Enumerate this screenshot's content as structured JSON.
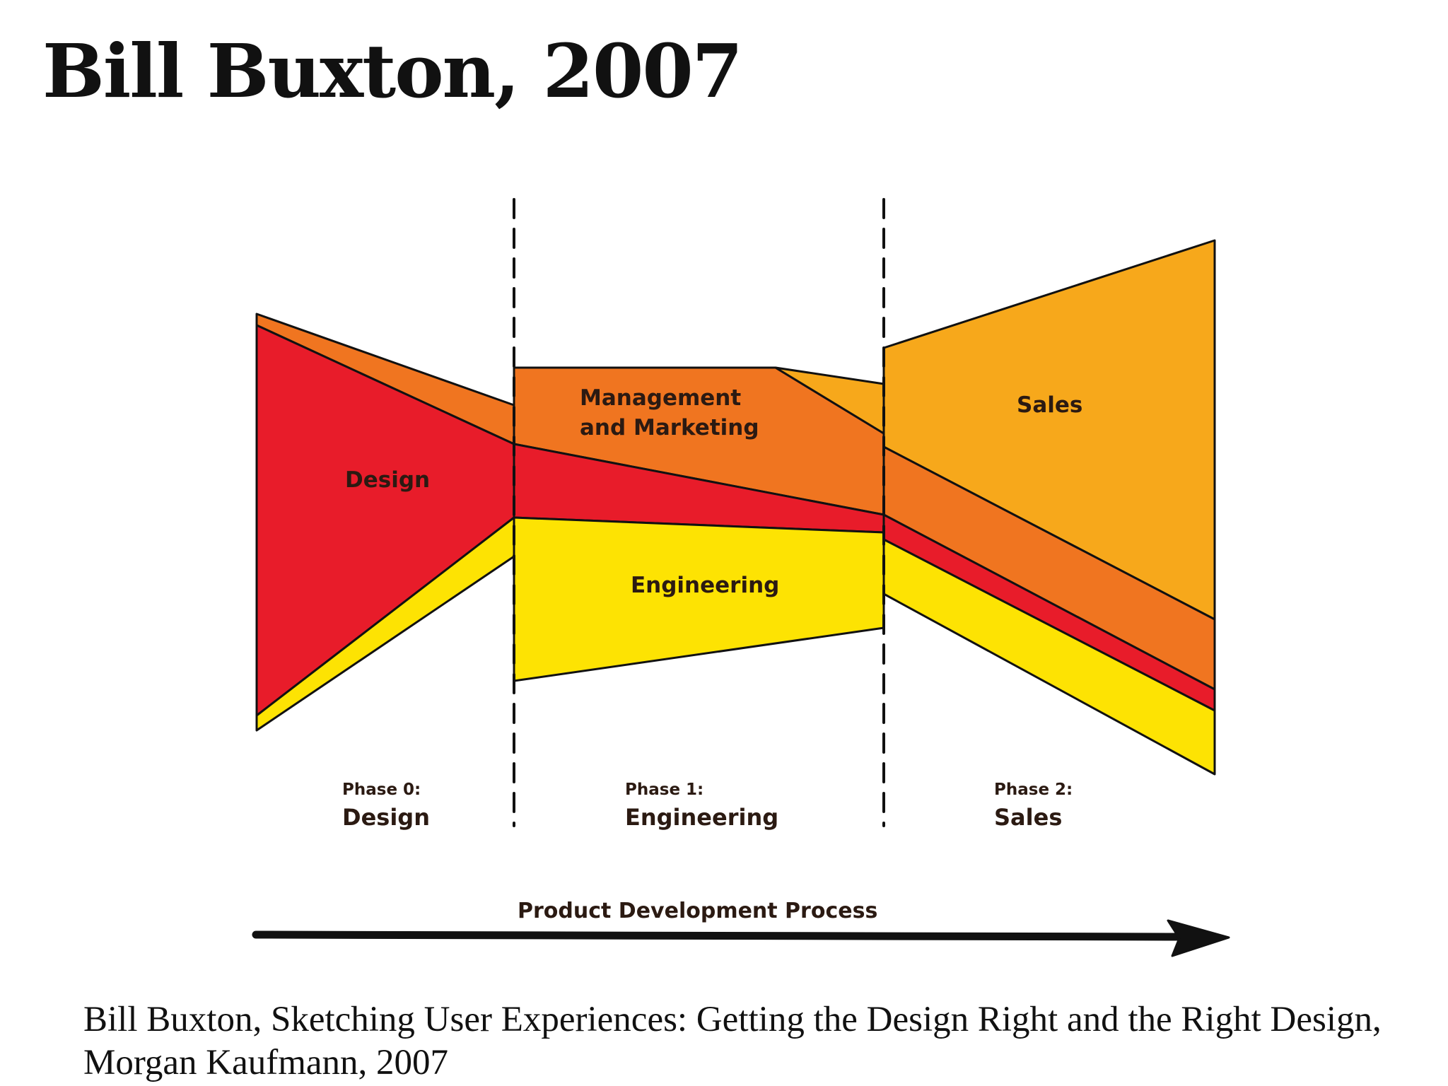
{
  "slide": {
    "title": "Bill Buxton, 2007"
  },
  "diagram": {
    "bands": [
      {
        "id": "design",
        "label": "Design",
        "color": "#e81c2a"
      },
      {
        "id": "management-marketing",
        "label_lines": [
          "Management",
          "and Marketing"
        ],
        "color": "#f07520"
      },
      {
        "id": "engineering",
        "label": "Engineering",
        "color": "#fde303"
      },
      {
        "id": "sales",
        "label": "Sales",
        "color": "#f7a81b"
      }
    ],
    "phases": [
      {
        "number": "Phase 0:",
        "name": "Design"
      },
      {
        "number": "Phase 1:",
        "name": "Engineering"
      },
      {
        "number": "Phase 2:",
        "name": "Sales"
      }
    ],
    "axis_label": "Product Development Process"
  },
  "citation": "Bill Buxton, Sketching User Experiences: Getting the Design Right and the Right Design, Morgan Kaufmann, 2007"
}
